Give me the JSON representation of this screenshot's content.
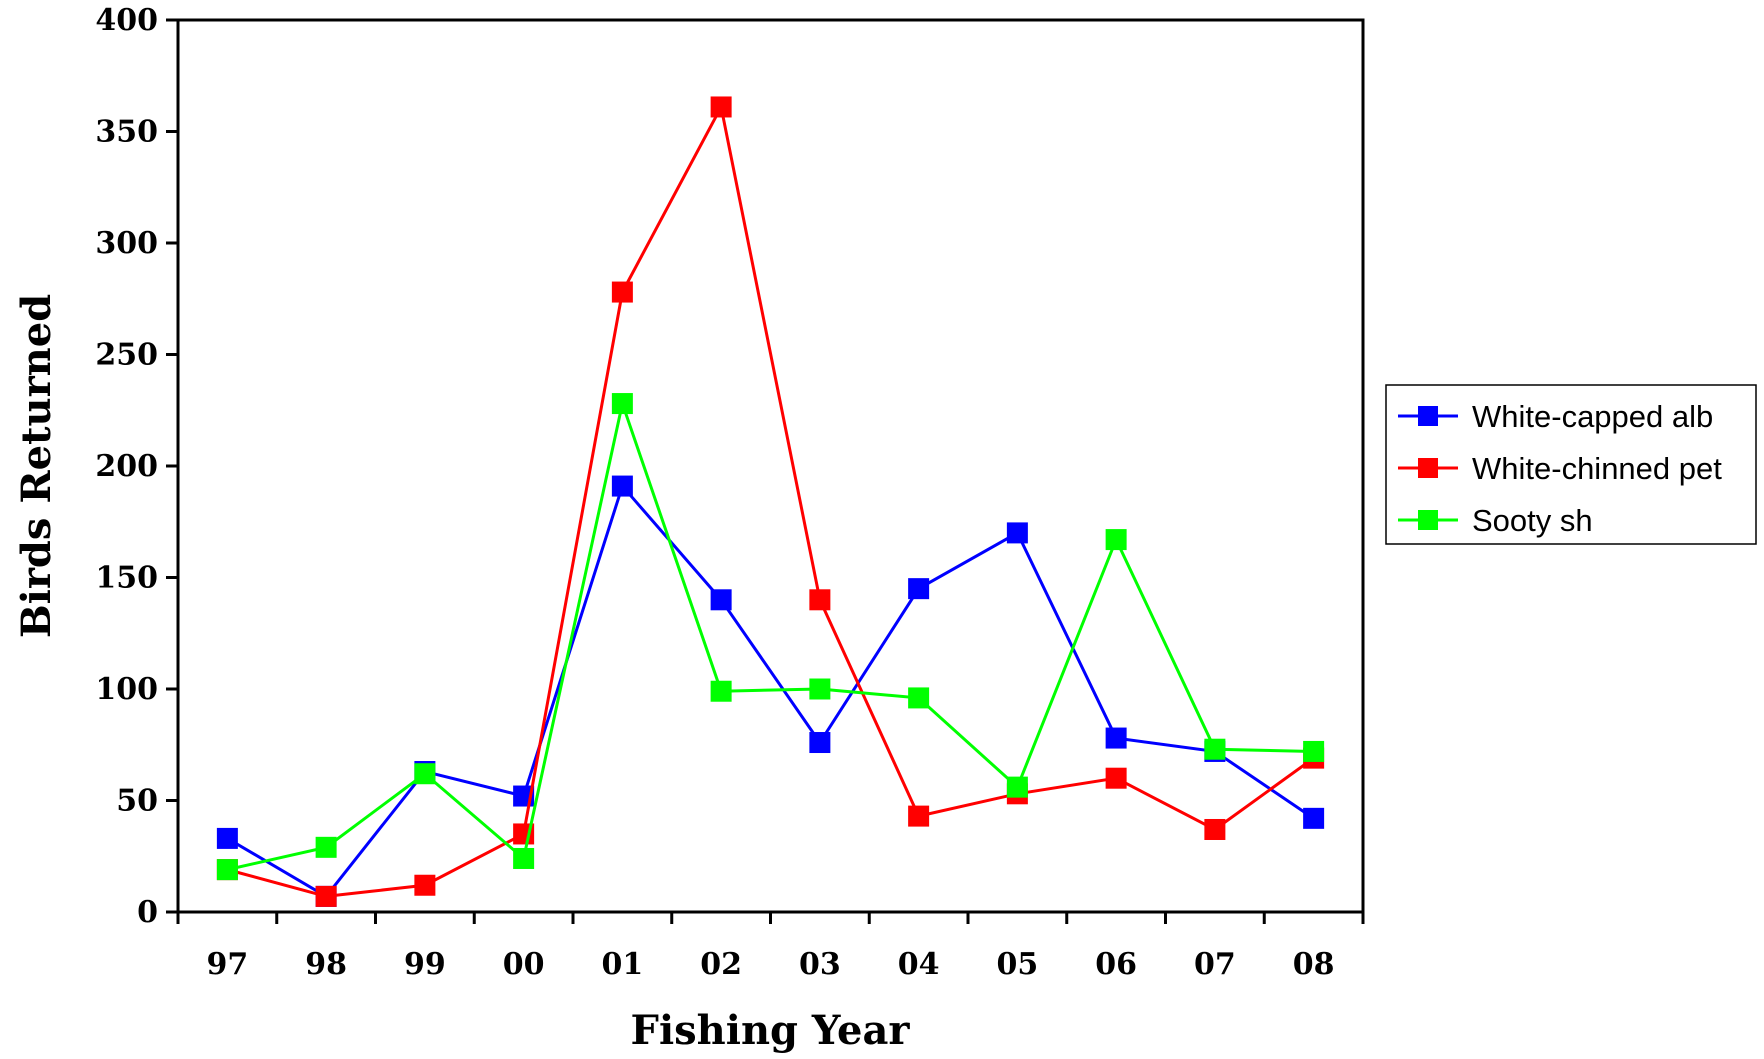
{
  "chart_data": {
    "type": "line",
    "xlabel": "Fishing Year",
    "ylabel": "Birds Returned",
    "categories": [
      "97",
      "98",
      "99",
      "00",
      "01",
      "02",
      "03",
      "04",
      "05",
      "06",
      "07",
      "08"
    ],
    "ylim": [
      0,
      400
    ],
    "yticks": [
      0,
      50,
      100,
      150,
      200,
      250,
      300,
      350,
      400
    ],
    "legend_position": "right",
    "grid": false,
    "series": [
      {
        "name": "White-capped alb",
        "color": "#0000ff",
        "marker": "square",
        "values": [
          33,
          7,
          63,
          52,
          191,
          140,
          76,
          145,
          170,
          78,
          72,
          42
        ]
      },
      {
        "name": "White-chinned pet",
        "color": "#ff0000",
        "marker": "square",
        "values": [
          19,
          7,
          12,
          35,
          278,
          361,
          140,
          43,
          53,
          60,
          37,
          69
        ]
      },
      {
        "name": "Sooty sh",
        "color": "#00ff00",
        "marker": "square",
        "values": [
          19,
          29,
          62,
          24,
          228,
          99,
          100,
          96,
          56,
          167,
          73,
          72
        ]
      }
    ]
  }
}
